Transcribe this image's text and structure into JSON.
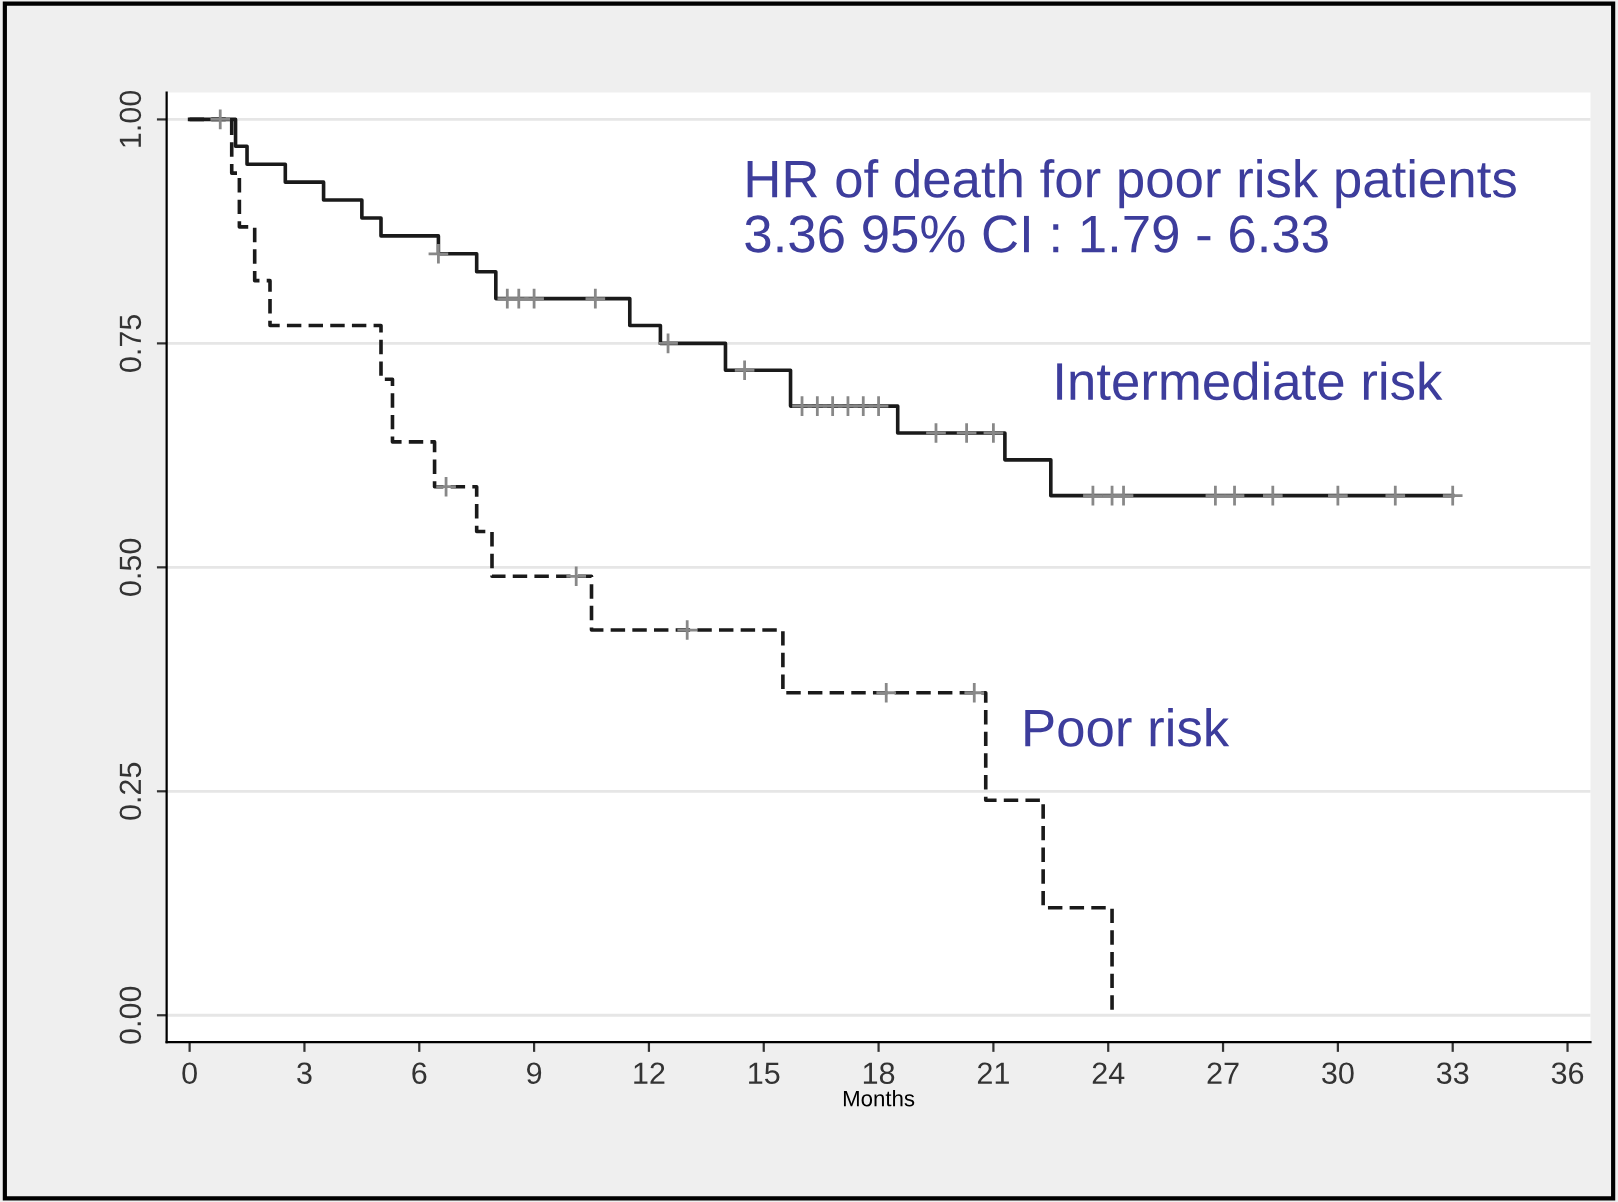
{
  "chart_data": {
    "type": "step",
    "xlabel": "Months",
    "xlim": [
      -0.6,
      36.6
    ],
    "xticks": [
      0,
      3,
      6,
      9,
      12,
      15,
      18,
      21,
      24,
      27,
      30,
      33,
      36
    ],
    "ylim": [
      -0.03,
      1.03
    ],
    "yticks": [
      {
        "value": 0,
        "label": "0.00"
      },
      {
        "value": 0.25,
        "label": "0.25"
      },
      {
        "value": 0.5,
        "label": "0.50"
      },
      {
        "value": 0.75,
        "label": "0.75"
      },
      {
        "value": 1,
        "label": "1.00"
      }
    ],
    "grid": "y",
    "marker": "none",
    "series": [
      {
        "name": "Intermediate risk",
        "color": "#1a1a1a",
        "line_style": "solid",
        "x": [
          0,
          1.2,
          1.5,
          2.5,
          3.5,
          4.5,
          5.0,
          6.5,
          7.5,
          8.0,
          11.5,
          12.0,
          12.3,
          14.0,
          15.7,
          18.5,
          21.3,
          22.5,
          33.0
        ],
        "values": [
          1.0,
          0.97,
          0.95,
          0.93,
          0.91,
          0.89,
          0.87,
          0.85,
          0.83,
          0.8,
          0.77,
          0.77,
          0.75,
          0.72,
          0.68,
          0.65,
          0.62,
          0.58,
          0.58
        ]
      },
      {
        "name": "Poor risk",
        "color": "#1a1a1a",
        "line_style": "dashed",
        "x": [
          0,
          1.1,
          1.3,
          1.7,
          2.1,
          5.0,
          5.3,
          6.4,
          7.5,
          7.9,
          10.5,
          15.5,
          20.8,
          22.3,
          24.1,
          24.1
        ],
        "values": [
          1.0,
          0.94,
          0.88,
          0.82,
          0.77,
          0.71,
          0.64,
          0.59,
          0.54,
          0.49,
          0.43,
          0.36,
          0.24,
          0.12,
          0.0,
          0.0
        ]
      },
      {
        "type": "scatter",
        "marker": "cross",
        "color": "#888888",
        "x": [
          0.8,
          6.5,
          8.3,
          8.6,
          9.0,
          10.6,
          12.5,
          14.5,
          16.0,
          16.4,
          16.8,
          17.2,
          17.6,
          18.0,
          19.5,
          20.3,
          21.0,
          23.6,
          24.1,
          24.4,
          26.8,
          27.3,
          28.3,
          30.0,
          31.5,
          33.0
        ],
        "values": [
          1.0,
          0.85,
          0.8,
          0.8,
          0.8,
          0.8,
          0.75,
          0.72,
          0.68,
          0.68,
          0.68,
          0.68,
          0.68,
          0.68,
          0.65,
          0.65,
          0.65,
          0.58,
          0.58,
          0.58,
          0.58,
          0.58,
          0.58,
          0.58,
          0.58,
          0.58
        ]
      },
      {
        "type": "scatter",
        "marker": "cross",
        "color": "#888888",
        "x": [
          6.7,
          10.1,
          13.0,
          18.2,
          20.5
        ],
        "values": [
          0.59,
          0.49,
          0.43,
          0.36,
          0.36
        ]
      }
    ],
    "annotations": [
      "HR of death for poor risk patients\n3.36 95% CI : 1.79 - 6.33"
    ]
  }
}
